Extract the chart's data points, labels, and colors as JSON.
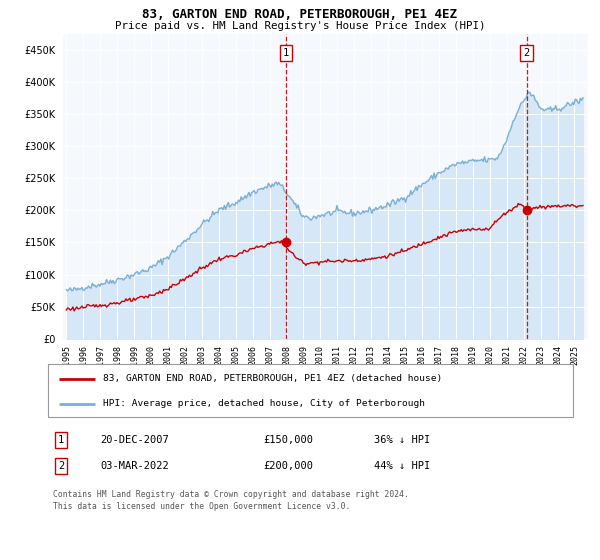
{
  "title": "83, GARTON END ROAD, PETERBOROUGH, PE1 4EZ",
  "subtitle": "Price paid vs. HM Land Registry's House Price Index (HPI)",
  "legend_line1": "83, GARTON END ROAD, PETERBOROUGH, PE1 4EZ (detached house)",
  "legend_line2": "HPI: Average price, detached house, City of Peterborough",
  "annotation1_date": "20-DEC-2007",
  "annotation1_price": "£150,000",
  "annotation1_hpi": "36% ↓ HPI",
  "annotation2_date": "03-MAR-2022",
  "annotation2_price": "£200,000",
  "annotation2_hpi": "44% ↓ HPI",
  "footnote1": "Contains HM Land Registry data © Crown copyright and database right 2024.",
  "footnote2": "This data is licensed under the Open Government Licence v3.0.",
  "red_color": "#cc0000",
  "blue_color": "#7bafd4",
  "blue_fill": "#d6e8f7",
  "bg_color": "#f5f8fc",
  "sale1_year": 2007.97,
  "sale1_value": 150000,
  "sale2_year": 2022.17,
  "sale2_value": 200000,
  "ylim": [
    0,
    475000
  ],
  "xlim_start": 1994.8,
  "xlim_end": 2025.8,
  "yticks": [
    0,
    50000,
    100000,
    150000,
    200000,
    250000,
    300000,
    350000,
    400000,
    450000
  ]
}
